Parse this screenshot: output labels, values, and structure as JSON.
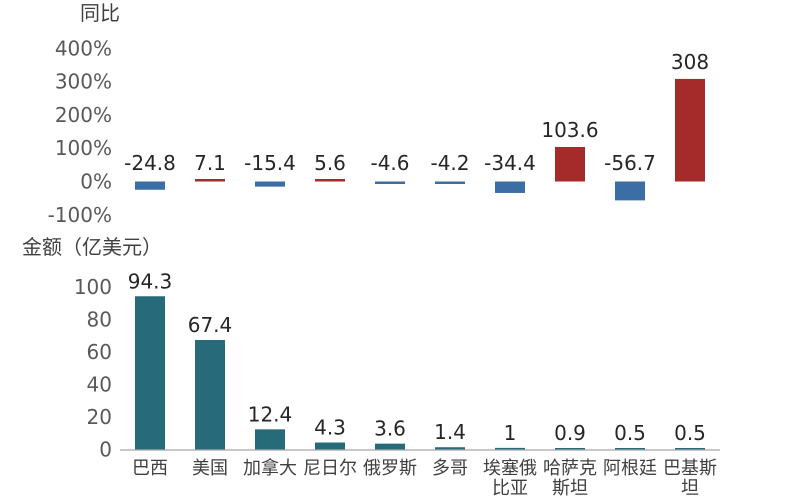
{
  "chart_data": [
    {
      "type": "bar",
      "title": "",
      "ylabel": "同比",
      "y_ticks": [
        "400%",
        "300%",
        "200%",
        "100%",
        "0%",
        "-100%"
      ],
      "y_tick_values": [
        400,
        300,
        200,
        100,
        0,
        -100
      ],
      "ylim": [
        -100,
        400
      ],
      "categories": [
        "巴西",
        "美国",
        "加拿大",
        "尼日尔",
        "俄罗斯",
        "多哥",
        "埃塞俄比亚",
        "哈萨克斯坦",
        "阿根廷",
        "巴基斯坦"
      ],
      "values": [
        -24.8,
        7.1,
        -15.4,
        5.6,
        -4.6,
        -4.2,
        -34.4,
        103.6,
        -56.7,
        308
      ],
      "data_labels": [
        "-24.8",
        "7.1",
        "-15.4",
        "5.6",
        "-4.6",
        "-4.2",
        "-34.4",
        "103.6",
        "-56.7",
        "308"
      ],
      "colors": {
        "positive": "#a52a2a",
        "negative": "#3a6ea5"
      },
      "grid": false
    },
    {
      "type": "bar",
      "title": "",
      "ylabel": "金额（亿美元）",
      "y_ticks": [
        "100",
        "80",
        "60",
        "40",
        "20",
        "0"
      ],
      "y_tick_values": [
        100,
        80,
        60,
        40,
        20,
        0
      ],
      "ylim": [
        0,
        100
      ],
      "categories": [
        "巴西",
        "美国",
        "加拿大",
        "尼日尔",
        "俄罗斯",
        "多哥",
        "埃塞俄比亚",
        "哈萨克斯坦",
        "阿根廷",
        "巴基斯坦"
      ],
      "category_lines": [
        [
          "巴西"
        ],
        [
          "美国"
        ],
        [
          "加拿大"
        ],
        [
          "尼日尔"
        ],
        [
          "俄罗斯"
        ],
        [
          "多哥"
        ],
        [
          "埃塞俄",
          "比亚"
        ],
        [
          "哈萨克",
          "斯坦"
        ],
        [
          "阿根廷"
        ],
        [
          "巴基斯",
          "坦"
        ]
      ],
      "values": [
        94.3,
        67.4,
        12.4,
        4.3,
        3.6,
        1.4,
        1,
        0.9,
        0.5,
        0.5
      ],
      "data_labels": [
        "94.3",
        "67.4",
        "12.4",
        "4.3",
        "3.6",
        "1.4",
        "1",
        "0.9",
        "0.5",
        "0.5"
      ],
      "colors": {
        "bar": "#276b7a",
        "axis": "#a6a6a6"
      },
      "grid": false
    }
  ]
}
